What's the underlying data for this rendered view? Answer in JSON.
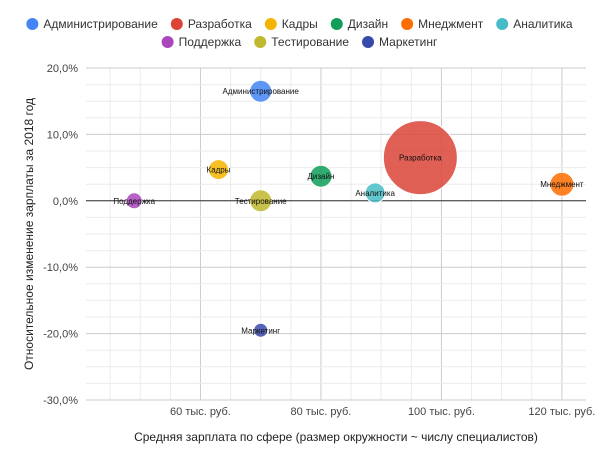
{
  "chart_data": {
    "type": "scatter",
    "xlabel": "Средняя зарплата по сфере (размер окружности ~ числу специалистов)",
    "ylabel": "Относительное изменение зарплаты за 2018 год",
    "xlim": [
      41000,
      124000
    ],
    "ylim": [
      -30,
      20
    ],
    "x_ticks": [
      60000,
      80000,
      100000,
      120000
    ],
    "x_tick_labels": [
      "60 тыс. руб.",
      "80 тыс. руб.",
      "100 тыс. руб.",
      "120 тыс. руб."
    ],
    "y_ticks": [
      20,
      10,
      0,
      -10,
      -20,
      -30
    ],
    "y_tick_labels": [
      "20,0%",
      "10,0%",
      "0,0%",
      "-10,0%",
      "-20,0%",
      "-30,0%"
    ],
    "grid": true,
    "legend_position": "top",
    "series": [
      {
        "name": "Администрирование",
        "label": "Администрирование",
        "color": "#4285F4",
        "x": 70000,
        "y": 16.5,
        "size": 11
      },
      {
        "name": "Разработка",
        "label": "Разработка",
        "color": "#DB4437",
        "x": 96500,
        "y": 6.5,
        "size": 37
      },
      {
        "name": "Кадры",
        "label": "Кадры",
        "color": "#F4B400",
        "x": 63000,
        "y": 4.7,
        "size": 10
      },
      {
        "name": "Дизайн",
        "label": "Дизайн",
        "color": "#0F9D58",
        "x": 80000,
        "y": 3.7,
        "size": 11
      },
      {
        "name": "Мнеджмент",
        "label": "Мнеджмент",
        "color": "#FF6D00",
        "x": 120000,
        "y": 2.5,
        "size": 12
      },
      {
        "name": "Аналитика",
        "label": "Аналитика",
        "color": "#46BDC6",
        "x": 89000,
        "y": 1.2,
        "size": 10
      },
      {
        "name": "Поддержка",
        "label": "Поддержка",
        "color": "#AB47BC",
        "x": 49000,
        "y": 0,
        "size": 8
      },
      {
        "name": "Тестирование",
        "label": "Тестирование",
        "color": "#C0B82E",
        "x": 70000,
        "y": 0,
        "size": 11
      },
      {
        "name": "Маркетинг",
        "label": "Маркетинг",
        "color": "#3949AB",
        "x": 70000,
        "y": -19.5,
        "size": 7
      }
    ]
  }
}
